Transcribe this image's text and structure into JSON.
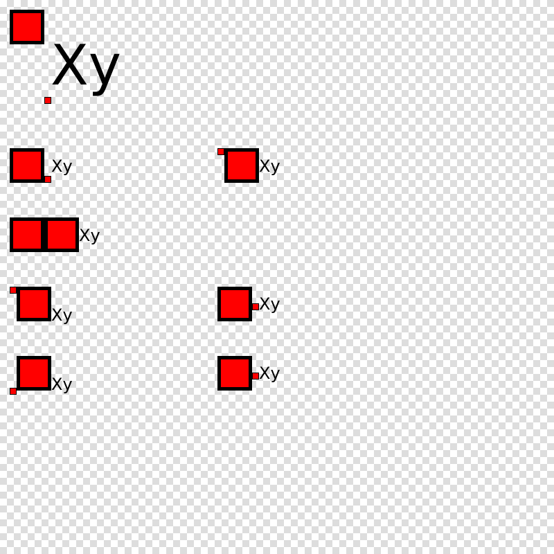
{
  "colors": {
    "fill": "#ff0000",
    "stroke": "#000000"
  },
  "labels": {
    "large": "Xy",
    "r2_left": "Xy",
    "r2_right": "Xy",
    "r3_left": "Xy",
    "r4_left": "Xy",
    "r4_right": "Xy",
    "r5_left": "Xy",
    "r5_right": "Xy"
  }
}
